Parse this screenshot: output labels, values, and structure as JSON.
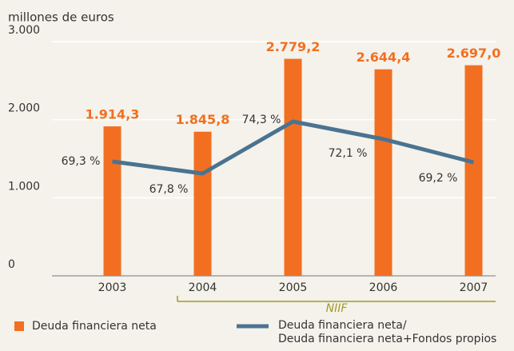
{
  "chart_data": {
    "type": "bar",
    "y_label": "millones de euros",
    "categories": [
      "2003",
      "2004",
      "2005",
      "2006",
      "2007"
    ],
    "ylim": [
      0,
      3000
    ],
    "yticks": [
      0,
      {
        "value": 1000,
        "label": "1.000"
      },
      {
        "value": 2000,
        "label": "2.000"
      },
      {
        "value": 3000,
        "label": "3.000"
      }
    ],
    "y2lim": [
      55,
      84.3
    ],
    "grid": true,
    "annotation": "NIIF",
    "series": [
      {
        "name": "Deuda financiera neta",
        "type": "bar",
        "color": "#f26f21",
        "values": [
          1914.3,
          1845.8,
          2779.2,
          2644.4,
          2697.0
        ],
        "value_labels": [
          "1.914,3",
          "1.845,8",
          "2.779,2",
          "2.644,4",
          "2.697,0"
        ]
      },
      {
        "name": "Deuda financiera neta/\nDeuda financiera neta+Fondos propios",
        "type": "line",
        "axis": "y2",
        "color": "#4a7391",
        "values": [
          69.3,
          67.8,
          74.3,
          72.1,
          69.2
        ],
        "value_labels": [
          "69,3 %",
          "67,8 %",
          "74,3 %",
          "72,1 %",
          "69,2 %"
        ]
      }
    ]
  }
}
